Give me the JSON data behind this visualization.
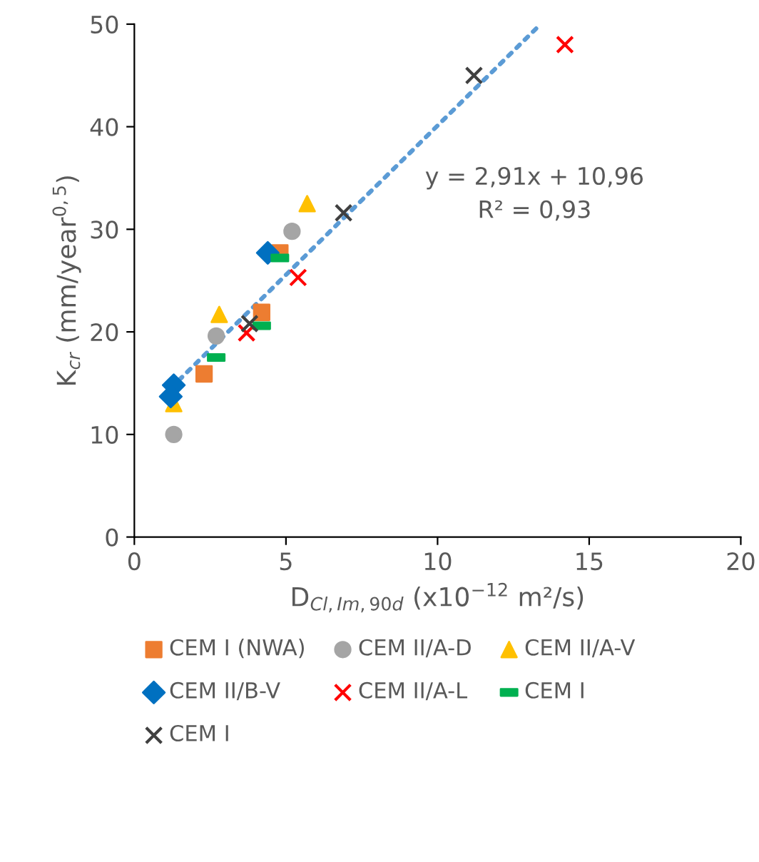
{
  "chart_data": {
    "type": "scatter",
    "xlabel": "D$_{Cl,Im,90d}$ (x10$^{−12}$ m²/s)",
    "ylabel": "K$_{cr}$ (mm/year$^{0,5}$)",
    "xlim": [
      0,
      20
    ],
    "xticks": [
      0,
      5,
      10,
      15,
      20
    ],
    "ylim": [
      0,
      50
    ],
    "yticks": [
      0,
      10,
      20,
      30,
      40,
      50
    ],
    "grid": false,
    "legend": "bottom",
    "annotations": [
      "y = 2,91x + 10,96",
      "R² = 0,93"
    ],
    "series": [
      {
        "name": "CEM I (NWA)",
        "color": "#ed7d31",
        "marker": "square",
        "x": [
          2.3,
          4.2,
          4.8
        ],
        "values": [
          15.9,
          21.9,
          27.7
        ]
      },
      {
        "name": "CEM II/A-D",
        "color": "#a5a5a5",
        "marker": "circle",
        "x": [
          1.3,
          2.7,
          5.2
        ],
        "values": [
          10.0,
          19.6,
          29.8
        ]
      },
      {
        "name": "CEM II/A-V",
        "color": "#ffc000",
        "marker": "triangle",
        "x": [
          1.3,
          2.8,
          5.7
        ],
        "values": [
          13.0,
          21.7,
          32.5
        ]
      },
      {
        "name": "CEM II/B-V",
        "color": "#0070c0",
        "marker": "diamond",
        "x": [
          1.3,
          1.2,
          4.4
        ],
        "values": [
          14.8,
          13.7,
          27.7
        ]
      },
      {
        "name": "CEM II/A-L",
        "color": "#ff0000",
        "marker": "cross",
        "x": [
          3.7,
          5.4,
          14.2
        ],
        "values": [
          19.9,
          25.3,
          48.0
        ]
      },
      {
        "name": "CEM I",
        "color": "#00b050",
        "x": [
          2.7,
          4.2,
          4.8
        ],
        "values": [
          17.5,
          20.6,
          27.2
        ]
      },
      {
        "name": "CEM I",
        "color": "#404040",
        "marker": "cross",
        "x": [
          3.8,
          6.9,
          11.2
        ],
        "values": [
          20.8,
          31.6,
          45.0
        ]
      },
      {
        "type": "line",
        "color": "#5b9bd5",
        "line_style": "dotted",
        "marker": "none",
        "x": [
          1.2,
          13.4
        ],
        "values": [
          14.5,
          50.0
        ]
      }
    ]
  }
}
